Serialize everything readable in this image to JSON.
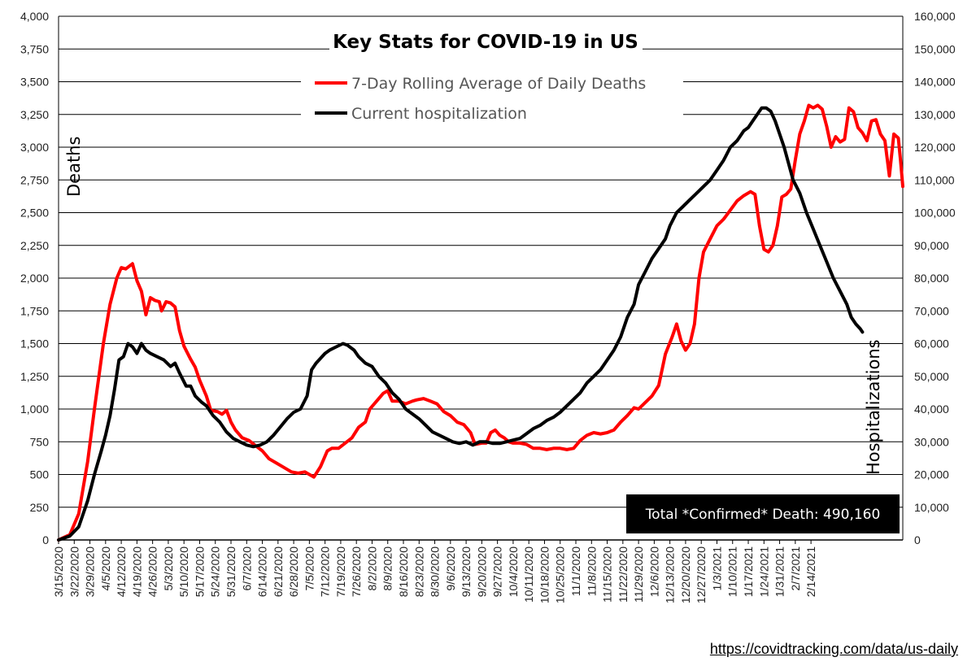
{
  "chart_data": {
    "type": "line",
    "title": "Key Stats for COVID-19 in US",
    "ylabel_left": "Deaths",
    "ylabel_right": "Hospitalizations",
    "ylim_left": [
      0,
      4000
    ],
    "ylim_right": [
      0,
      160000
    ],
    "y_ticks_left": [
      "0",
      "250",
      "500",
      "750",
      "1,000",
      "1,250",
      "1,500",
      "1,750",
      "2,000",
      "2,250",
      "2,500",
      "2,750",
      "3,000",
      "3,250",
      "3,500",
      "3,750",
      "4,000"
    ],
    "y_ticks_right": [
      "0",
      "10,000",
      "20,000",
      "30,000",
      "40,000",
      "50,000",
      "60,000",
      "70,000",
      "80,000",
      "90,000",
      "100,000",
      "110,000",
      "120,000",
      "130,000",
      "140,000",
      "150,000",
      "160,000"
    ],
    "x_ticks": [
      "3/15/2020",
      "3/22/2020",
      "3/29/2020",
      "4/5/2020",
      "4/12/2020",
      "4/19/2020",
      "4/26/2020",
      "5/3/2020",
      "5/10/2020",
      "5/17/2020",
      "5/24/2020",
      "5/31/2020",
      "6/7/2020",
      "6/14/2020",
      "6/21/2020",
      "6/28/2020",
      "7/5/2020",
      "7/12/2020",
      "7/19/2020",
      "7/26/2020",
      "8/2/2020",
      "8/9/2020",
      "8/16/2020",
      "8/23/2020",
      "8/30/2020",
      "9/6/2020",
      "9/13/2020",
      "9/20/2020",
      "9/27/2020",
      "10/4/2020",
      "10/11/2020",
      "10/18/2020",
      "10/25/2020",
      "11/1/2020",
      "11/8/2020",
      "11/15/2020",
      "11/22/2020",
      "11/29/2020",
      "12/6/2020",
      "12/13/2020",
      "12/20/2020",
      "12/27/2020",
      "1/3/2021",
      "1/10/2021",
      "1/17/2021",
      "1/24/2021",
      "1/31/2021",
      "2/7/2021",
      "2/14/2021"
    ],
    "series": [
      {
        "name": "7-Day Rolling Average of Daily Deaths",
        "color": "#ff0000",
        "axis": "left",
        "points": [
          [
            0,
            0
          ],
          [
            5,
            40
          ],
          [
            9,
            200
          ],
          [
            13,
            600
          ],
          [
            16,
            1000
          ],
          [
            20,
            1500
          ],
          [
            23,
            1800
          ],
          [
            26,
            2000
          ],
          [
            28,
            2080
          ],
          [
            30,
            2070
          ],
          [
            33,
            2110
          ],
          [
            35,
            1980
          ],
          [
            37,
            1900
          ],
          [
            39,
            1720
          ],
          [
            41,
            1850
          ],
          [
            43,
            1830
          ],
          [
            45,
            1820
          ],
          [
            46,
            1750
          ],
          [
            48,
            1820
          ],
          [
            50,
            1810
          ],
          [
            52,
            1780
          ],
          [
            54,
            1600
          ],
          [
            56,
            1480
          ],
          [
            59,
            1380
          ],
          [
            61,
            1320
          ],
          [
            63,
            1220
          ],
          [
            66,
            1100
          ],
          [
            68,
            990
          ],
          [
            71,
            980
          ],
          [
            73,
            960
          ],
          [
            75,
            990
          ],
          [
            77,
            900
          ],
          [
            79,
            840
          ],
          [
            82,
            780
          ],
          [
            85,
            760
          ],
          [
            88,
            720
          ],
          [
            91,
            680
          ],
          [
            94,
            620
          ],
          [
            97,
            590
          ],
          [
            100,
            560
          ],
          [
            104,
            520
          ],
          [
            107,
            510
          ],
          [
            110,
            520
          ],
          [
            114,
            480
          ],
          [
            117,
            560
          ],
          [
            120,
            680
          ],
          [
            122,
            700
          ],
          [
            125,
            700
          ],
          [
            128,
            740
          ],
          [
            131,
            780
          ],
          [
            134,
            860
          ],
          [
            137,
            900
          ],
          [
            139,
            1000
          ],
          [
            142,
            1060
          ],
          [
            145,
            1120
          ],
          [
            147,
            1140
          ],
          [
            149,
            1060
          ],
          [
            152,
            1060
          ],
          [
            155,
            1040
          ],
          [
            158,
            1060
          ],
          [
            160,
            1070
          ],
          [
            163,
            1080
          ],
          [
            166,
            1060
          ],
          [
            169,
            1040
          ],
          [
            172,
            980
          ],
          [
            175,
            950
          ],
          [
            178,
            900
          ],
          [
            181,
            880
          ],
          [
            184,
            820
          ],
          [
            186,
            730
          ],
          [
            189,
            740
          ],
          [
            191,
            740
          ],
          [
            193,
            820
          ],
          [
            195,
            840
          ],
          [
            197,
            800
          ],
          [
            199,
            780
          ],
          [
            201,
            750
          ],
          [
            203,
            740
          ],
          [
            206,
            740
          ],
          [
            209,
            730
          ],
          [
            212,
            700
          ],
          [
            215,
            700
          ],
          [
            218,
            690
          ],
          [
            221,
            700
          ],
          [
            224,
            700
          ],
          [
            227,
            690
          ],
          [
            230,
            700
          ],
          [
            233,
            760
          ],
          [
            236,
            800
          ],
          [
            239,
            820
          ],
          [
            242,
            810
          ],
          [
            245,
            820
          ],
          [
            248,
            840
          ],
          [
            251,
            900
          ],
          [
            254,
            950
          ],
          [
            257,
            1010
          ],
          [
            259,
            1000
          ],
          [
            262,
            1050
          ],
          [
            265,
            1100
          ],
          [
            268,
            1180
          ],
          [
            271,
            1420
          ],
          [
            274,
            1550
          ],
          [
            276,
            1650
          ],
          [
            278,
            1520
          ],
          [
            280,
            1450
          ],
          [
            282,
            1500
          ],
          [
            284,
            1650
          ],
          [
            286,
            2000
          ],
          [
            288,
            2200
          ],
          [
            291,
            2300
          ],
          [
            294,
            2400
          ],
          [
            297,
            2450
          ],
          [
            300,
            2520
          ],
          [
            303,
            2590
          ],
          [
            306,
            2630
          ],
          [
            309,
            2660
          ],
          [
            311,
            2640
          ],
          [
            313,
            2400
          ],
          [
            315,
            2220
          ],
          [
            317,
            2200
          ],
          [
            319,
            2250
          ],
          [
            321,
            2400
          ],
          [
            323,
            2620
          ],
          [
            325,
            2640
          ],
          [
            327,
            2680
          ],
          [
            329,
            2900
          ],
          [
            331,
            3100
          ],
          [
            333,
            3200
          ],
          [
            335,
            3320
          ],
          [
            337,
            3300
          ],
          [
            339,
            3320
          ],
          [
            341,
            3290
          ],
          [
            343,
            3160
          ],
          [
            345,
            3000
          ],
          [
            347,
            3080
          ],
          [
            349,
            3040
          ],
          [
            351,
            3060
          ],
          [
            353,
            3300
          ],
          [
            355,
            3270
          ],
          [
            357,
            3150
          ],
          [
            359,
            3110
          ],
          [
            361,
            3050
          ],
          [
            363,
            3200
          ],
          [
            365,
            3210
          ],
          [
            367,
            3100
          ],
          [
            369,
            3050
          ],
          [
            371,
            2780
          ],
          [
            373,
            3100
          ],
          [
            375,
            3070
          ],
          [
            376,
            2900
          ],
          [
            377,
            2700
          ]
        ]
      },
      {
        "name": "Current hospitalization",
        "color": "#000000",
        "axis": "right",
        "points": [
          [
            0,
            0
          ],
          [
            5,
            1200
          ],
          [
            9,
            4000
          ],
          [
            13,
            12000
          ],
          [
            16,
            20000
          ],
          [
            19,
            27000
          ],
          [
            21,
            32000
          ],
          [
            23,
            38000
          ],
          [
            25,
            46000
          ],
          [
            27,
            55000
          ],
          [
            29,
            56000
          ],
          [
            31,
            60000
          ],
          [
            33,
            59000
          ],
          [
            35,
            57000
          ],
          [
            37,
            60000
          ],
          [
            39,
            58000
          ],
          [
            41,
            57000
          ],
          [
            44,
            56000
          ],
          [
            47,
            55000
          ],
          [
            50,
            53000
          ],
          [
            52,
            54000
          ],
          [
            54,
            51000
          ],
          [
            57,
            47000
          ],
          [
            59,
            47000
          ],
          [
            61,
            44000
          ],
          [
            64,
            42000
          ],
          [
            66,
            41000
          ],
          [
            69,
            38000
          ],
          [
            72,
            36000
          ],
          [
            75,
            33000
          ],
          [
            78,
            31000
          ],
          [
            81,
            30000
          ],
          [
            84,
            29000
          ],
          [
            87,
            28500
          ],
          [
            90,
            29000
          ],
          [
            93,
            30000
          ],
          [
            96,
            32000
          ],
          [
            99,
            34500
          ],
          [
            102,
            37000
          ],
          [
            105,
            39000
          ],
          [
            108,
            40000
          ],
          [
            111,
            44000
          ],
          [
            113,
            52000
          ],
          [
            115,
            54000
          ],
          [
            117,
            55500
          ],
          [
            119,
            57000
          ],
          [
            121,
            58000
          ],
          [
            124,
            59000
          ],
          [
            127,
            60000
          ],
          [
            129,
            59500
          ],
          [
            132,
            58000
          ],
          [
            134,
            56000
          ],
          [
            137,
            54000
          ],
          [
            140,
            53000
          ],
          [
            143,
            50000
          ],
          [
            146,
            48000
          ],
          [
            149,
            45000
          ],
          [
            152,
            43000
          ],
          [
            155,
            40000
          ],
          [
            158,
            38500
          ],
          [
            161,
            37000
          ],
          [
            164,
            35000
          ],
          [
            167,
            33000
          ],
          [
            170,
            32000
          ],
          [
            173,
            31000
          ],
          [
            176,
            30000
          ],
          [
            179,
            29500
          ],
          [
            182,
            30000
          ],
          [
            185,
            29000
          ],
          [
            188,
            30000
          ],
          [
            191,
            30000
          ],
          [
            194,
            29500
          ],
          [
            197,
            29500
          ],
          [
            200,
            30000
          ],
          [
            203,
            30500
          ],
          [
            206,
            31000
          ],
          [
            209,
            32500
          ],
          [
            212,
            34000
          ],
          [
            215,
            35000
          ],
          [
            218,
            36500
          ],
          [
            221,
            37500
          ],
          [
            224,
            39000
          ],
          [
            227,
            41000
          ],
          [
            230,
            43000
          ],
          [
            233,
            45000
          ],
          [
            236,
            48000
          ],
          [
            239,
            50000
          ],
          [
            242,
            52000
          ],
          [
            245,
            55000
          ],
          [
            248,
            58000
          ],
          [
            251,
            62000
          ],
          [
            254,
            68000
          ],
          [
            257,
            72000
          ],
          [
            259,
            78000
          ],
          [
            262,
            82000
          ],
          [
            265,
            86000
          ],
          [
            268,
            89000
          ],
          [
            271,
            92000
          ],
          [
            273,
            96000
          ],
          [
            276,
            100000
          ],
          [
            279,
            102000
          ],
          [
            282,
            104000
          ],
          [
            285,
            106000
          ],
          [
            288,
            108000
          ],
          [
            291,
            110000
          ],
          [
            294,
            113000
          ],
          [
            297,
            116000
          ],
          [
            300,
            120000
          ],
          [
            303,
            122000
          ],
          [
            306,
            125000
          ],
          [
            308,
            126000
          ],
          [
            310,
            128000
          ],
          [
            312,
            130000
          ],
          [
            314,
            132000
          ],
          [
            316,
            132000
          ],
          [
            318,
            131000
          ],
          [
            320,
            128000
          ],
          [
            322,
            124000
          ],
          [
            324,
            120000
          ],
          [
            326,
            115000
          ],
          [
            328,
            110000
          ],
          [
            331,
            106000
          ],
          [
            334,
            100000
          ],
          [
            337,
            95000
          ],
          [
            340,
            90000
          ],
          [
            343,
            85000
          ],
          [
            346,
            80000
          ],
          [
            349,
            76000
          ],
          [
            352,
            72000
          ],
          [
            354,
            68000
          ],
          [
            356,
            66000
          ],
          [
            358,
            64500
          ],
          [
            359,
            63500
          ]
        ]
      }
    ],
    "annotation": "Total *Confirmed* Death: 490,160"
  },
  "source": {
    "url_text": "https://covidtracking.com/data/us-daily"
  }
}
